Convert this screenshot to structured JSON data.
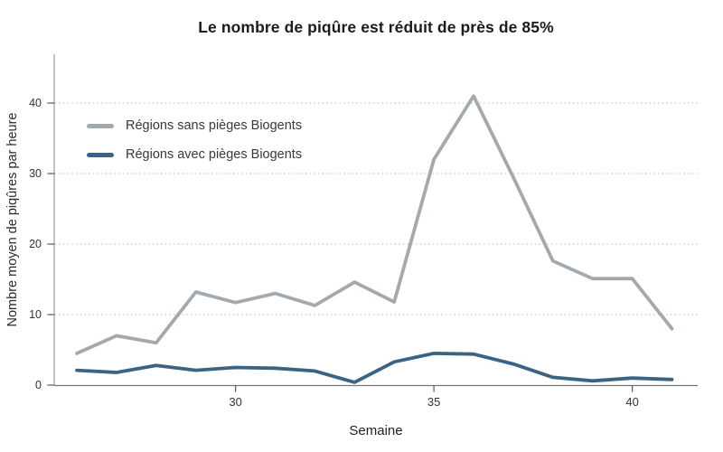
{
  "chart_data": {
    "type": "line",
    "title": "Le nombre de piqûre est réduit de près de 85%",
    "xlabel": "Semaine",
    "ylabel": "Nombre moyen de piqûres par heure",
    "x": [
      26,
      27,
      28,
      29,
      30,
      31,
      32,
      33,
      34,
      35,
      36,
      37,
      38,
      39,
      40,
      41
    ],
    "series": [
      {
        "key": "sans-pieges",
        "name": "Régions sans pièges Biogents",
        "color": "#a3aaaf",
        "values": [
          4.5,
          7,
          6,
          13.2,
          11.7,
          13,
          11.3,
          14.6,
          11.8,
          32,
          41,
          29.5,
          17.6,
          15.1,
          15.1,
          8
        ]
      },
      {
        "key": "avec-pieges",
        "name": "Régions avec pièges Biogents",
        "color": "#3a6384",
        "values": [
          2.1,
          1.8,
          2.8,
          2.1,
          2.5,
          2.4,
          2.0,
          0.4,
          3.3,
          4.5,
          4.4,
          3.0,
          1.1,
          0.6,
          1.0,
          0.8
        ]
      }
    ],
    "x_ticks": [
      30,
      35,
      40
    ],
    "y_ticks": [
      0,
      10,
      20,
      30,
      40
    ],
    "xlim": [
      25.4,
      41.6
    ],
    "ylim": [
      0,
      46.9
    ],
    "grid": "horizontal-dotted",
    "legend_position": "inside-top-left",
    "colors": {
      "gridline": "#c2c2c2",
      "y_axis": "#9a9a9a",
      "x_axis": "#757575",
      "tick": "#595959",
      "title": "#1c1c1c",
      "tick_label": "#333333"
    }
  }
}
